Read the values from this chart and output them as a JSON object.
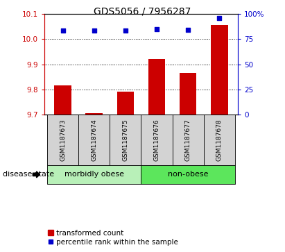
{
  "title": "GDS5056 / 7956287",
  "samples": [
    "GSM1187673",
    "GSM1187674",
    "GSM1187675",
    "GSM1187676",
    "GSM1187677",
    "GSM1187678"
  ],
  "bar_values": [
    9.815,
    9.705,
    9.79,
    9.921,
    9.865,
    10.055
  ],
  "percentile_values": [
    83.5,
    83.5,
    83.5,
    84.5,
    84.0,
    95.5
  ],
  "bar_color": "#cc0000",
  "dot_color": "#0000cc",
  "ylim_left": [
    9.7,
    10.1
  ],
  "ylim_right": [
    0,
    100
  ],
  "yticks_left": [
    9.7,
    9.8,
    9.9,
    10.0,
    10.1
  ],
  "yticks_right": [
    0,
    25,
    50,
    75,
    100
  ],
  "ytick_labels_right": [
    "0",
    "25",
    "50",
    "75",
    "100%"
  ],
  "grid_values": [
    9.8,
    9.9,
    10.0
  ],
  "groups": [
    {
      "label": "morbidly obese",
      "start": 0,
      "end": 3
    },
    {
      "label": "non-obese",
      "start": 3,
      "end": 6
    }
  ],
  "disease_state_label": "disease state",
  "legend_bar_label": "transformed count",
  "legend_dot_label": "percentile rank within the sample",
  "title_fontsize": 10,
  "tick_fontsize": 7.5,
  "sample_fontsize": 6.5,
  "group_label_fontsize": 8,
  "legend_fontsize": 7.5,
  "disease_fontsize": 8,
  "bottom_area_color": "#d3d3d3",
  "group_area_color_light": "#aaffaa",
  "group_area_color_dark": "#66ee66",
  "group_colors": [
    "#b8f0b8",
    "#5ce65c"
  ],
  "bg_color": "#ffffff"
}
